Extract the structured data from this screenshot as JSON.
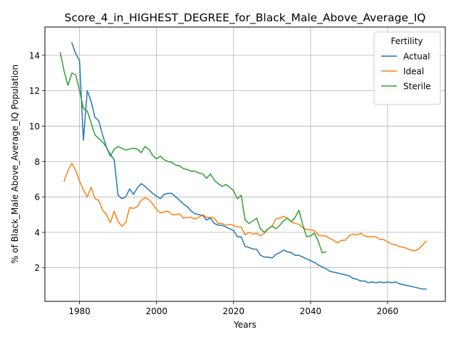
{
  "chart_data": {
    "type": "line",
    "title": "Score_4_in_HIGHEST_DEGREE_for_Black_Male_Above_Average_IQ",
    "xlabel": "Years",
    "ylabel": "% of Black_Male Above_Average_IQ Population",
    "xlim": [
      1971,
      2075
    ],
    "ylim": [
      0.1,
      15.6
    ],
    "xticks": [
      1980,
      2000,
      2020,
      2040,
      2060
    ],
    "yticks": [
      2,
      4,
      6,
      8,
      10,
      12,
      14
    ],
    "grid": true,
    "legend": {
      "title": "Fertility",
      "position": "top-right"
    },
    "series": [
      {
        "name": "Actual",
        "color": "#1f77b4",
        "points": [
          [
            1978,
            14.7
          ],
          [
            1979,
            14.1
          ],
          [
            1980,
            13.7
          ],
          [
            1981,
            9.2
          ],
          [
            1982,
            12.0
          ],
          [
            1983,
            11.4
          ],
          [
            1984,
            10.5
          ],
          [
            1985,
            10.3
          ],
          [
            1986,
            9.5
          ],
          [
            1987,
            8.8
          ],
          [
            1988,
            8.4
          ],
          [
            1989,
            8.1
          ],
          [
            1990,
            6.1
          ],
          [
            1991,
            5.9
          ],
          [
            1992,
            6.0
          ],
          [
            1993,
            6.45
          ],
          [
            1994,
            6.15
          ],
          [
            1995,
            6.5
          ],
          [
            1996,
            6.75
          ],
          [
            1997,
            6.6
          ],
          [
            1998,
            6.4
          ],
          [
            1999,
            6.2
          ],
          [
            2000,
            6.05
          ],
          [
            2001,
            5.9
          ],
          [
            2002,
            6.15
          ],
          [
            2003,
            6.2
          ],
          [
            2004,
            6.2
          ],
          [
            2005,
            6.0
          ],
          [
            2006,
            5.8
          ],
          [
            2007,
            5.6
          ],
          [
            2008,
            5.45
          ],
          [
            2009,
            5.2
          ],
          [
            2010,
            5.05
          ],
          [
            2011,
            5.0
          ],
          [
            2012,
            4.95
          ],
          [
            2013,
            4.7
          ],
          [
            2014,
            4.8
          ],
          [
            2015,
            4.5
          ],
          [
            2016,
            4.4
          ],
          [
            2017,
            4.4
          ],
          [
            2018,
            4.3
          ],
          [
            2019,
            4.2
          ],
          [
            2020,
            4.1
          ],
          [
            2021,
            3.75
          ],
          [
            2022,
            3.75
          ],
          [
            2023,
            3.2
          ],
          [
            2024,
            3.15
          ],
          [
            2025,
            3.05
          ],
          [
            2026,
            3.05
          ],
          [
            2027,
            2.7
          ],
          [
            2028,
            2.6
          ],
          [
            2029,
            2.6
          ],
          [
            2030,
            2.55
          ],
          [
            2031,
            2.75
          ],
          [
            2032,
            2.85
          ],
          [
            2033,
            3.0
          ],
          [
            2034,
            2.9
          ],
          [
            2035,
            2.85
          ],
          [
            2036,
            2.7
          ],
          [
            2037,
            2.7
          ],
          [
            2038,
            2.6
          ],
          [
            2039,
            2.5
          ],
          [
            2040,
            2.4
          ],
          [
            2041,
            2.3
          ],
          [
            2042,
            2.15
          ],
          [
            2043,
            2.05
          ],
          [
            2044,
            1.95
          ],
          [
            2045,
            1.8
          ],
          [
            2046,
            1.75
          ],
          [
            2047,
            1.7
          ],
          [
            2048,
            1.65
          ],
          [
            2049,
            1.6
          ],
          [
            2050,
            1.55
          ],
          [
            2051,
            1.4
          ],
          [
            2052,
            1.35
          ],
          [
            2053,
            1.25
          ],
          [
            2054,
            1.25
          ],
          [
            2055,
            1.15
          ],
          [
            2056,
            1.2
          ],
          [
            2057,
            1.15
          ],
          [
            2058,
            1.2
          ],
          [
            2059,
            1.15
          ],
          [
            2060,
            1.2
          ],
          [
            2061,
            1.15
          ],
          [
            2062,
            1.2
          ],
          [
            2063,
            1.1
          ],
          [
            2064,
            1.05
          ],
          [
            2065,
            1.0
          ],
          [
            2066,
            0.95
          ],
          [
            2067,
            0.9
          ],
          [
            2068,
            0.85
          ],
          [
            2069,
            0.8
          ],
          [
            2070,
            0.8
          ]
        ]
      },
      {
        "name": "Ideal",
        "color": "#ff7f0e",
        "points": [
          [
            1976,
            6.9
          ],
          [
            1977,
            7.5
          ],
          [
            1978,
            7.9
          ],
          [
            1979,
            7.5
          ],
          [
            1980,
            6.9
          ],
          [
            1981,
            6.4
          ],
          [
            1982,
            6.0
          ],
          [
            1983,
            6.55
          ],
          [
            1984,
            5.9
          ],
          [
            1985,
            5.8
          ],
          [
            1986,
            5.25
          ],
          [
            1987,
            5.0
          ],
          [
            1988,
            4.55
          ],
          [
            1989,
            5.2
          ],
          [
            1990,
            4.6
          ],
          [
            1991,
            4.35
          ],
          [
            1992,
            4.55
          ],
          [
            1993,
            5.4
          ],
          [
            1994,
            5.35
          ],
          [
            1995,
            5.45
          ],
          [
            1996,
            5.8
          ],
          [
            1997,
            5.95
          ],
          [
            1998,
            5.85
          ],
          [
            1999,
            5.6
          ],
          [
            2000,
            5.3
          ],
          [
            2001,
            5.1
          ],
          [
            2002,
            5.15
          ],
          [
            2003,
            5.2
          ],
          [
            2004,
            5.0
          ],
          [
            2005,
            5.0
          ],
          [
            2006,
            5.05
          ],
          [
            2007,
            4.8
          ],
          [
            2008,
            4.85
          ],
          [
            2009,
            4.85
          ],
          [
            2010,
            4.75
          ],
          [
            2011,
            4.85
          ],
          [
            2012,
            5.0
          ],
          [
            2013,
            4.85
          ],
          [
            2014,
            4.85
          ],
          [
            2015,
            4.8
          ],
          [
            2016,
            4.5
          ],
          [
            2017,
            4.5
          ],
          [
            2018,
            4.4
          ],
          [
            2019,
            4.45
          ],
          [
            2020,
            4.4
          ],
          [
            2021,
            4.3
          ],
          [
            2022,
            4.3
          ],
          [
            2023,
            3.85
          ],
          [
            2024,
            4.0
          ],
          [
            2025,
            3.9
          ],
          [
            2026,
            3.95
          ],
          [
            2027,
            3.8
          ],
          [
            2028,
            3.95
          ],
          [
            2029,
            4.2
          ],
          [
            2030,
            4.35
          ],
          [
            2031,
            4.75
          ],
          [
            2032,
            4.8
          ],
          [
            2033,
            4.9
          ],
          [
            2034,
            4.8
          ],
          [
            2035,
            4.6
          ],
          [
            2036,
            4.5
          ],
          [
            2037,
            4.45
          ],
          [
            2038,
            4.25
          ],
          [
            2039,
            4.15
          ],
          [
            2040,
            4.15
          ],
          [
            2041,
            4.1
          ],
          [
            2042,
            3.85
          ],
          [
            2043,
            3.8
          ],
          [
            2044,
            3.8
          ],
          [
            2045,
            3.65
          ],
          [
            2046,
            3.55
          ],
          [
            2047,
            3.4
          ],
          [
            2048,
            3.55
          ],
          [
            2049,
            3.55
          ],
          [
            2050,
            3.8
          ],
          [
            2051,
            3.9
          ],
          [
            2052,
            3.85
          ],
          [
            2053,
            3.95
          ],
          [
            2054,
            3.8
          ],
          [
            2055,
            3.75
          ],
          [
            2056,
            3.75
          ],
          [
            2057,
            3.75
          ],
          [
            2058,
            3.6
          ],
          [
            2059,
            3.6
          ],
          [
            2060,
            3.45
          ],
          [
            2061,
            3.35
          ],
          [
            2062,
            3.3
          ],
          [
            2063,
            3.2
          ],
          [
            2064,
            3.15
          ],
          [
            2065,
            3.1
          ],
          [
            2066,
            3.0
          ],
          [
            2067,
            2.95
          ],
          [
            2068,
            3.05
          ],
          [
            2069,
            3.25
          ],
          [
            2070,
            3.5
          ]
        ]
      },
      {
        "name": "Sterile",
        "color": "#2ca02c",
        "points": [
          [
            1975,
            14.15
          ],
          [
            1976,
            13.1
          ],
          [
            1977,
            12.3
          ],
          [
            1978,
            13.0
          ],
          [
            1979,
            12.9
          ],
          [
            1980,
            12.0
          ],
          [
            1981,
            11.0
          ],
          [
            1982,
            10.85
          ],
          [
            1983,
            10.2
          ],
          [
            1984,
            9.5
          ],
          [
            1985,
            9.3
          ],
          [
            1986,
            9.1
          ],
          [
            1987,
            8.8
          ],
          [
            1988,
            8.3
          ],
          [
            1989,
            8.7
          ],
          [
            1990,
            8.85
          ],
          [
            1991,
            8.75
          ],
          [
            1992,
            8.65
          ],
          [
            1993,
            8.7
          ],
          [
            1994,
            8.75
          ],
          [
            1995,
            8.7
          ],
          [
            1996,
            8.5
          ],
          [
            1997,
            8.85
          ],
          [
            1998,
            8.7
          ],
          [
            1999,
            8.35
          ],
          [
            2000,
            8.15
          ],
          [
            2001,
            8.3
          ],
          [
            2002,
            8.1
          ],
          [
            2003,
            8.0
          ],
          [
            2004,
            7.95
          ],
          [
            2005,
            7.8
          ],
          [
            2006,
            7.75
          ],
          [
            2007,
            7.6
          ],
          [
            2008,
            7.55
          ],
          [
            2009,
            7.45
          ],
          [
            2010,
            7.45
          ],
          [
            2011,
            7.35
          ],
          [
            2012,
            7.3
          ],
          [
            2013,
            7.05
          ],
          [
            2014,
            7.3
          ],
          [
            2015,
            6.95
          ],
          [
            2016,
            6.75
          ],
          [
            2017,
            6.6
          ],
          [
            2018,
            6.7
          ],
          [
            2019,
            6.55
          ],
          [
            2020,
            6.35
          ],
          [
            2021,
            5.9
          ],
          [
            2022,
            6.1
          ],
          [
            2023,
            4.7
          ],
          [
            2024,
            4.5
          ],
          [
            2025,
            4.65
          ],
          [
            2026,
            4.8
          ],
          [
            2027,
            4.2
          ],
          [
            2028,
            4.0
          ],
          [
            2029,
            4.2
          ],
          [
            2030,
            4.35
          ],
          [
            2031,
            4.2
          ],
          [
            2032,
            4.4
          ],
          [
            2033,
            4.65
          ],
          [
            2034,
            4.8
          ],
          [
            2035,
            4.6
          ],
          [
            2036,
            4.85
          ],
          [
            2037,
            5.25
          ],
          [
            2038,
            4.4
          ],
          [
            2039,
            3.75
          ],
          [
            2040,
            3.8
          ],
          [
            2041,
            3.95
          ],
          [
            2042,
            3.5
          ],
          [
            2043,
            2.85
          ],
          [
            2044,
            2.9
          ]
        ]
      }
    ]
  }
}
